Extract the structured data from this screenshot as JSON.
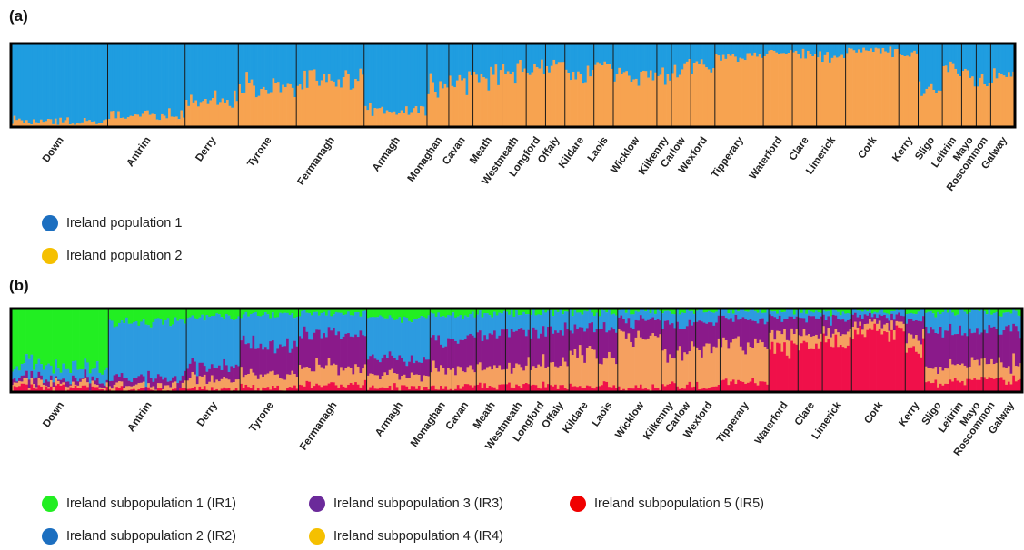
{
  "chart_data": [
    {
      "panel_label": "(a)",
      "type": "stacked-bar",
      "K": 2,
      "grid": false,
      "legend_placement": "bottom-left",
      "regions": [
        {
          "name": "Down",
          "n": 40,
          "ancestry": [
            0.93,
            0.07
          ]
        },
        {
          "name": "Antrim",
          "n": 32,
          "ancestry": [
            0.85,
            0.15
          ]
        },
        {
          "name": "Derry",
          "n": 22,
          "ancestry": [
            0.7,
            0.3
          ]
        },
        {
          "name": "Tyrone",
          "n": 24,
          "ancestry": [
            0.5,
            0.5
          ]
        },
        {
          "name": "Fermanagh",
          "n": 28,
          "ancestry": [
            0.42,
            0.58
          ]
        },
        {
          "name": "Armagh",
          "n": 26,
          "ancestry": [
            0.8,
            0.2
          ]
        },
        {
          "name": "Monaghan",
          "n": 9,
          "ancestry": [
            0.5,
            0.5
          ]
        },
        {
          "name": "Cavan",
          "n": 10,
          "ancestry": [
            0.45,
            0.55
          ]
        },
        {
          "name": "Meath",
          "n": 12,
          "ancestry": [
            0.4,
            0.6
          ]
        },
        {
          "name": "Westmeath",
          "n": 10,
          "ancestry": [
            0.32,
            0.68
          ]
        },
        {
          "name": "Longford",
          "n": 8,
          "ancestry": [
            0.3,
            0.7
          ]
        },
        {
          "name": "Offaly",
          "n": 8,
          "ancestry": [
            0.28,
            0.72
          ]
        },
        {
          "name": "Kildare",
          "n": 12,
          "ancestry": [
            0.35,
            0.65
          ]
        },
        {
          "name": "Laois",
          "n": 8,
          "ancestry": [
            0.28,
            0.72
          ]
        },
        {
          "name": "Wicklow",
          "n": 18,
          "ancestry": [
            0.35,
            0.65
          ]
        },
        {
          "name": "Kilkenny",
          "n": 6,
          "ancestry": [
            0.35,
            0.65
          ]
        },
        {
          "name": "Carlow",
          "n": 8,
          "ancestry": [
            0.3,
            0.7
          ]
        },
        {
          "name": "Wexford",
          "n": 10,
          "ancestry": [
            0.28,
            0.72
          ]
        },
        {
          "name": "Tipperary",
          "n": 20,
          "ancestry": [
            0.15,
            0.85
          ]
        },
        {
          "name": "Waterford",
          "n": 12,
          "ancestry": [
            0.12,
            0.88
          ]
        },
        {
          "name": "Clare",
          "n": 10,
          "ancestry": [
            0.12,
            0.88
          ]
        },
        {
          "name": "Limerick",
          "n": 12,
          "ancestry": [
            0.15,
            0.85
          ]
        },
        {
          "name": "Cork",
          "n": 22,
          "ancestry": [
            0.08,
            0.92
          ]
        },
        {
          "name": "Kerry",
          "n": 8,
          "ancestry": [
            0.15,
            0.85
          ]
        },
        {
          "name": "Sligo",
          "n": 10,
          "ancestry": [
            0.55,
            0.45
          ]
        },
        {
          "name": "Leitrim",
          "n": 8,
          "ancestry": [
            0.3,
            0.7
          ]
        },
        {
          "name": "Mayo",
          "n": 6,
          "ancestry": [
            0.4,
            0.6
          ]
        },
        {
          "name": "Roscommon",
          "n": 6,
          "ancestry": [
            0.45,
            0.55
          ]
        },
        {
          "name": "Galway",
          "n": 10,
          "ancestry": [
            0.38,
            0.62
          ]
        }
      ],
      "legend": [
        {
          "label": "Ireland population 1",
          "color": "#1f9de0"
        },
        {
          "label": "Ireland population 2",
          "color": "#f7a350"
        }
      ],
      "legend_dot_colors": [
        "#1c6fc0",
        "#f5c000"
      ]
    },
    {
      "panel_label": "(b)",
      "type": "stacked-bar",
      "K": 5,
      "grid": false,
      "legend_placement": "bottom-left",
      "regions": [
        {
          "name": "Down",
          "n": 40,
          "ancestry": [
            0.7,
            0.15,
            0.05,
            0.05,
            0.05
          ]
        },
        {
          "name": "Antrim",
          "n": 32,
          "ancestry": [
            0.15,
            0.7,
            0.08,
            0.05,
            0.02
          ]
        },
        {
          "name": "Derry",
          "n": 22,
          "ancestry": [
            0.1,
            0.6,
            0.15,
            0.12,
            0.03
          ]
        },
        {
          "name": "Tyrone",
          "n": 24,
          "ancestry": [
            0.08,
            0.35,
            0.35,
            0.17,
            0.05
          ]
        },
        {
          "name": "Fermanagh",
          "n": 28,
          "ancestry": [
            0.06,
            0.25,
            0.4,
            0.2,
            0.09
          ]
        },
        {
          "name": "Armagh",
          "n": 26,
          "ancestry": [
            0.12,
            0.5,
            0.18,
            0.15,
            0.05
          ]
        },
        {
          "name": "Monaghan",
          "n": 9,
          "ancestry": [
            0.08,
            0.3,
            0.35,
            0.22,
            0.05
          ]
        },
        {
          "name": "Cavan",
          "n": 10,
          "ancestry": [
            0.08,
            0.28,
            0.38,
            0.2,
            0.06
          ]
        },
        {
          "name": "Meath",
          "n": 12,
          "ancestry": [
            0.06,
            0.25,
            0.4,
            0.22,
            0.07
          ]
        },
        {
          "name": "Westmeath",
          "n": 10,
          "ancestry": [
            0.05,
            0.2,
            0.42,
            0.25,
            0.08
          ]
        },
        {
          "name": "Longford",
          "n": 8,
          "ancestry": [
            0.05,
            0.22,
            0.4,
            0.25,
            0.08
          ]
        },
        {
          "name": "Offaly",
          "n": 8,
          "ancestry": [
            0.05,
            0.2,
            0.38,
            0.3,
            0.07
          ]
        },
        {
          "name": "Kildare",
          "n": 12,
          "ancestry": [
            0.05,
            0.18,
            0.3,
            0.4,
            0.07
          ]
        },
        {
          "name": "Laois",
          "n": 8,
          "ancestry": [
            0.05,
            0.2,
            0.35,
            0.32,
            0.08
          ]
        },
        {
          "name": "Wicklow",
          "n": 18,
          "ancestry": [
            0.03,
            0.12,
            0.2,
            0.6,
            0.05
          ]
        },
        {
          "name": "Kilkenny",
          "n": 6,
          "ancestry": [
            0.04,
            0.15,
            0.35,
            0.36,
            0.1
          ]
        },
        {
          "name": "Carlow",
          "n": 8,
          "ancestry": [
            0.04,
            0.15,
            0.3,
            0.43,
            0.08
          ]
        },
        {
          "name": "Wexford",
          "n": 10,
          "ancestry": [
            0.03,
            0.12,
            0.3,
            0.48,
            0.07
          ]
        },
        {
          "name": "Tipperary",
          "n": 20,
          "ancestry": [
            0.03,
            0.1,
            0.3,
            0.45,
            0.12
          ]
        },
        {
          "name": "Waterford",
          "n": 12,
          "ancestry": [
            0.03,
            0.08,
            0.2,
            0.15,
            0.54
          ]
        },
        {
          "name": "Clare",
          "n": 10,
          "ancestry": [
            0.03,
            0.08,
            0.2,
            0.12,
            0.57
          ]
        },
        {
          "name": "Limerick",
          "n": 12,
          "ancestry": [
            0.03,
            0.08,
            0.15,
            0.12,
            0.62
          ]
        },
        {
          "name": "Cork",
          "n": 22,
          "ancestry": [
            0.03,
            0.07,
            0.1,
            0.08,
            0.72
          ]
        },
        {
          "name": "Kerry",
          "n": 8,
          "ancestry": [
            0.04,
            0.1,
            0.22,
            0.14,
            0.5
          ]
        },
        {
          "name": "Sligo",
          "n": 10,
          "ancestry": [
            0.05,
            0.22,
            0.45,
            0.18,
            0.1
          ]
        },
        {
          "name": "Leitrim",
          "n": 8,
          "ancestry": [
            0.05,
            0.22,
            0.4,
            0.2,
            0.13
          ]
        },
        {
          "name": "Mayo",
          "n": 6,
          "ancestry": [
            0.05,
            0.22,
            0.38,
            0.2,
            0.15
          ]
        },
        {
          "name": "Roscommon",
          "n": 6,
          "ancestry": [
            0.05,
            0.22,
            0.4,
            0.18,
            0.15
          ]
        },
        {
          "name": "Galway",
          "n": 10,
          "ancestry": [
            0.05,
            0.22,
            0.4,
            0.2,
            0.13
          ]
        }
      ],
      "legend": [
        {
          "label": "Ireland subpopulation 1 (IR1)",
          "color": "#22ee22"
        },
        {
          "label": "Ireland subpopulation 2 (IR2)",
          "color": "#2c9be0"
        },
        {
          "label": "Ireland subpopulation 3 (IR3)",
          "color": "#8a1a8a"
        },
        {
          "label": "Ireland subpopulation 4 (IR4)",
          "color": "#f5a060"
        },
        {
          "label": "Ireland subpopulation 5 (IR5)",
          "color": "#f0104a"
        }
      ],
      "legend_dot_colors": [
        "#22ee22",
        "#1c6fc0",
        "#6b2a9a",
        "#f5c000",
        "#f00000"
      ]
    }
  ]
}
